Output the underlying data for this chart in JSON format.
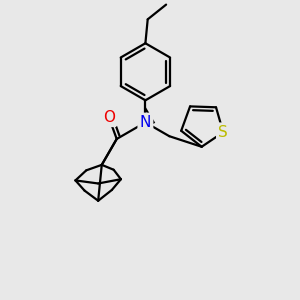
{
  "bg_color": "#e8e8e8",
  "atom_colors": {
    "C": "#000000",
    "N": "#0000ee",
    "O": "#ee0000",
    "S": "#bbbb00"
  },
  "bond_color": "#000000",
  "bond_width": 1.6,
  "figsize": [
    3.0,
    3.0
  ],
  "dpi": 100,
  "xlim": [
    -1.5,
    3.5
  ],
  "ylim": [
    -3.2,
    3.2
  ]
}
